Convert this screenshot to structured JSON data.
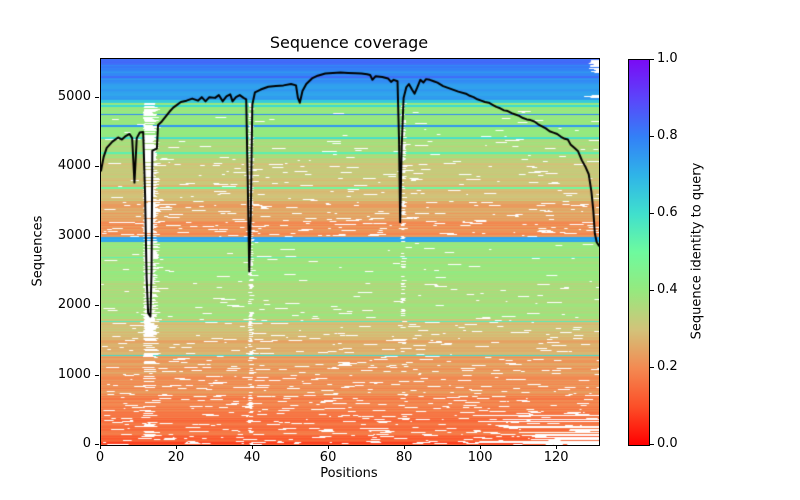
{
  "figure": {
    "title": "Sequence coverage",
    "xlabel": "Positions",
    "ylabel": "Sequences",
    "background": "#ffffff",
    "line_color": "#000000"
  },
  "chart_data": {
    "type": "heatmap",
    "title": "Sequence coverage",
    "xlabel": "Positions",
    "ylabel": "Sequences",
    "xlim": [
      0,
      131
    ],
    "ylim": [
      0,
      5560
    ],
    "grid": false,
    "xticks": [
      0,
      20,
      40,
      60,
      80,
      100,
      120
    ],
    "yticks": [
      0,
      1000,
      2000,
      3000,
      4000,
      5000
    ],
    "colorbar": {
      "label": "Sequence identity to query",
      "ticks": [
        "0.0",
        "0.2",
        "0.4",
        "0.6",
        "0.8",
        "1.0"
      ],
      "range": [
        0,
        1
      ],
      "position": "right",
      "colormap": "rainbow_r",
      "colormap_stops": [
        [
          0.0,
          "#ff0000"
        ],
        [
          0.1,
          "#fc4f28"
        ],
        [
          0.2,
          "#f38a52"
        ],
        [
          0.3,
          "#d2c37a"
        ],
        [
          0.4,
          "#96e97e"
        ],
        [
          0.5,
          "#6efa9e"
        ],
        [
          0.6,
          "#40e0cd"
        ],
        [
          0.7,
          "#2fb4e8"
        ],
        [
          0.8,
          "#3380f7"
        ],
        [
          0.9,
          "#5b45fa"
        ],
        [
          1.0,
          "#7a0bf5"
        ]
      ]
    },
    "identity_bands": [
      [
        0,
        60,
        0.1
      ],
      [
        60,
        150,
        0.13
      ],
      [
        150,
        400,
        0.16
      ],
      [
        400,
        700,
        0.18
      ],
      [
        700,
        1000,
        0.21
      ],
      [
        1000,
        1300,
        0.23
      ],
      [
        1300,
        1560,
        0.26
      ],
      [
        1560,
        1820,
        0.3
      ],
      [
        1820,
        2350,
        0.37
      ],
      [
        2350,
        2920,
        0.385
      ],
      [
        2920,
        2995,
        0.72
      ],
      [
        2995,
        3230,
        0.21
      ],
      [
        3230,
        3520,
        0.25
      ],
      [
        3520,
        3820,
        0.29
      ],
      [
        3820,
        4120,
        0.32
      ],
      [
        4120,
        4420,
        0.36
      ],
      [
        4420,
        4920,
        0.4
      ],
      [
        4920,
        4970,
        0.65
      ],
      [
        4970,
        5200,
        0.74
      ],
      [
        5200,
        5380,
        0.77
      ],
      [
        5380,
        5480,
        0.8
      ],
      [
        5480,
        5560,
        0.83
      ]
    ],
    "accent_rows": [
      [
        1290,
        0.6
      ],
      [
        1780,
        0.55
      ],
      [
        2700,
        0.52
      ],
      [
        3700,
        0.5
      ],
      [
        4210,
        0.55
      ],
      [
        4420,
        0.6
      ],
      [
        4600,
        0.75
      ],
      [
        4760,
        0.78
      ],
      [
        4880,
        0.62
      ],
      [
        5300,
        0.84
      ]
    ],
    "gap_columns": [
      {
        "x_from": 11.2,
        "x_to": 15.4,
        "ranges": [
          {
            "from": 1500,
            "to": 4920,
            "density": 0.85
          },
          {
            "from": 400,
            "to": 1500,
            "density": 0.38
          },
          {
            "from": 0,
            "to": 400,
            "density": 0.18
          }
        ]
      },
      {
        "x_from": 38.8,
        "x_to": 40.1,
        "ranges": [
          {
            "from": 1200,
            "to": 4920,
            "density": 0.6
          },
          {
            "from": 0,
            "to": 1200,
            "density": 0.35
          }
        ]
      },
      {
        "x_from": 78.9,
        "x_to": 80.3,
        "ranges": [
          {
            "from": 3300,
            "to": 4920,
            "density": 0.55
          },
          {
            "from": 1800,
            "to": 3300,
            "density": 0.28
          },
          {
            "from": 600,
            "to": 1800,
            "density": 0.12
          }
        ]
      }
    ],
    "right_edge_gaps": [
      {
        "from": 5360,
        "to": 5560,
        "x_from": 128.3,
        "density": 0.75
      },
      {
        "from": 4920,
        "to": 5080,
        "x_from": 126.5,
        "density": 0.45
      },
      {
        "from": 0,
        "to": 430,
        "x_from": 93,
        "density": 0.6
      }
    ],
    "gap_texture": [
      [
        0.0,
        0.3
      ],
      [
        0.18,
        0.22
      ],
      [
        0.25,
        0.16
      ],
      [
        0.32,
        0.1
      ],
      [
        0.4,
        0.05
      ],
      [
        0.55,
        0.02
      ],
      [
        0.7,
        0.008
      ],
      [
        1.0,
        0.004
      ]
    ],
    "coverage_line": {
      "name": "coverage",
      "color": "#000000",
      "points": [
        [
          0,
          3950
        ],
        [
          0.7,
          4150
        ],
        [
          1.5,
          4280
        ],
        [
          3,
          4370
        ],
        [
          4.5,
          4430
        ],
        [
          5.5,
          4400
        ],
        [
          6.5,
          4450
        ],
        [
          7.5,
          4480
        ],
        [
          8.2,
          4420
        ],
        [
          8.8,
          3780
        ],
        [
          9.4,
          4420
        ],
        [
          10.2,
          4500
        ],
        [
          11.1,
          4510
        ],
        [
          11.6,
          3600
        ],
        [
          12,
          2400
        ],
        [
          12.4,
          1900
        ],
        [
          13,
          1850
        ],
        [
          13.3,
          2500
        ],
        [
          13.5,
          4240
        ],
        [
          14.7,
          4270
        ],
        [
          15,
          4610
        ],
        [
          16,
          4660
        ],
        [
          17,
          4730
        ],
        [
          18,
          4800
        ],
        [
          19,
          4860
        ],
        [
          20,
          4900
        ],
        [
          21,
          4940
        ],
        [
          22.5,
          4960
        ],
        [
          24,
          4990
        ],
        [
          25.5,
          4960
        ],
        [
          26.5,
          5010
        ],
        [
          27.5,
          4950
        ],
        [
          28.5,
          5010
        ],
        [
          30,
          5000
        ],
        [
          31,
          5040
        ],
        [
          32,
          4950
        ],
        [
          33,
          5020
        ],
        [
          34,
          5050
        ],
        [
          34.6,
          4950
        ],
        [
          35.5,
          5010
        ],
        [
          36.5,
          5040
        ],
        [
          37.5,
          5000
        ],
        [
          38.2,
          4980
        ],
        [
          38.6,
          3800
        ],
        [
          39,
          2500
        ],
        [
          39.4,
          3300
        ],
        [
          39.8,
          4900
        ],
        [
          40.5,
          5080
        ],
        [
          42,
          5120
        ],
        [
          44,
          5160
        ],
        [
          46,
          5170
        ],
        [
          48,
          5180
        ],
        [
          50,
          5200
        ],
        [
          51.3,
          5180
        ],
        [
          51.8,
          5000
        ],
        [
          52.3,
          4930
        ],
        [
          53,
          5100
        ],
        [
          54,
          5200
        ],
        [
          55.5,
          5280
        ],
        [
          57,
          5320
        ],
        [
          59,
          5350
        ],
        [
          61,
          5360
        ],
        [
          63,
          5365
        ],
        [
          65,
          5360
        ],
        [
          67,
          5355
        ],
        [
          68.5,
          5350
        ],
        [
          70,
          5340
        ],
        [
          70.8,
          5330
        ],
        [
          71.4,
          5260
        ],
        [
          72.2,
          5310
        ],
        [
          74,
          5300
        ],
        [
          75.5,
          5280
        ],
        [
          76.3,
          5230
        ],
        [
          77,
          5260
        ],
        [
          78,
          5240
        ],
        [
          78.4,
          4400
        ],
        [
          78.7,
          3210
        ],
        [
          79.1,
          4300
        ],
        [
          79.6,
          5000
        ],
        [
          80.3,
          5150
        ],
        [
          81,
          5200
        ],
        [
          81.8,
          5120
        ],
        [
          82.5,
          5060
        ],
        [
          83.2,
          5150
        ],
        [
          84,
          5260
        ],
        [
          84.8,
          5220
        ],
        [
          85.5,
          5270
        ],
        [
          86.5,
          5260
        ],
        [
          87.5,
          5240
        ],
        [
          88.5,
          5220
        ],
        [
          90,
          5170
        ],
        [
          92,
          5130
        ],
        [
          94,
          5090
        ],
        [
          96,
          5060
        ],
        [
          97,
          5030
        ],
        [
          98,
          5010
        ],
        [
          99,
          4980
        ],
        [
          100,
          4960
        ],
        [
          101,
          4940
        ],
        [
          102,
          4930
        ],
        [
          103,
          4900
        ],
        [
          104,
          4870
        ],
        [
          105,
          4850
        ],
        [
          106,
          4820
        ],
        [
          107,
          4810
        ],
        [
          108,
          4780
        ],
        [
          109,
          4760
        ],
        [
          110,
          4740
        ],
        [
          111,
          4710
        ],
        [
          112,
          4690
        ],
        [
          113,
          4680
        ],
        [
          114,
          4660
        ],
        [
          115,
          4620
        ],
        [
          116,
          4590
        ],
        [
          117,
          4560
        ],
        [
          118,
          4520
        ],
        [
          119,
          4500
        ],
        [
          120,
          4480
        ],
        [
          121,
          4440
        ],
        [
          122,
          4410
        ],
        [
          122.8,
          4400
        ],
        [
          123.5,
          4330
        ],
        [
          124.5,
          4280
        ],
        [
          125.5,
          4230
        ],
        [
          126.5,
          4100
        ],
        [
          127.5,
          4000
        ],
        [
          128.3,
          3900
        ],
        [
          129,
          3650
        ],
        [
          129.5,
          3380
        ],
        [
          129.9,
          3050
        ],
        [
          130.4,
          2920
        ],
        [
          131,
          2870
        ]
      ]
    }
  }
}
